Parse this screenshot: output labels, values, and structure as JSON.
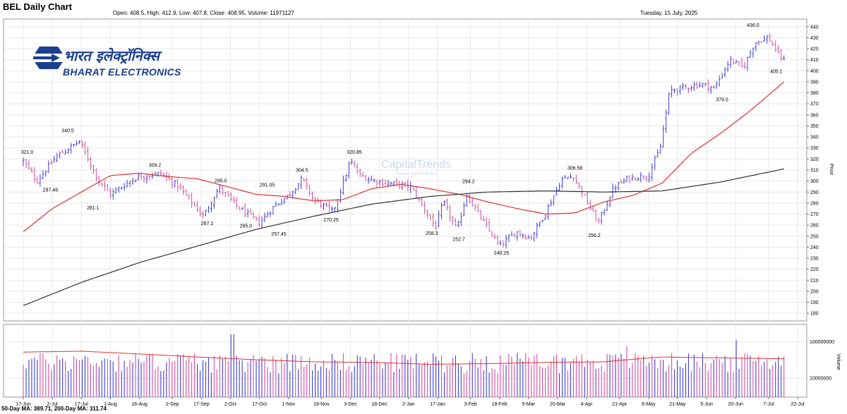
{
  "header": {
    "title": "BEL Daily Chart",
    "ohlc": "Open: 408.5, High: 412.9, Low: 407.8, Close: 408.95, Volume: 11971127",
    "date": "Tuesday, 15 July, 2025"
  },
  "footer": {
    "ma_text": "50-Day MA: 389.71, 200-Day MA: 311.74"
  },
  "logo": {
    "hindi": "भारत इलेक्ट्रॉनिक्स",
    "english": "BHARAT ELECTRONICS"
  },
  "watermark": {
    "brand": "CapitalTrends",
    "tagline": "Gaurav Capital Brand"
  },
  "colors": {
    "up_bar": "#3f3fe0",
    "down_bar": "#d44fa0",
    "ma50": "#e23030",
    "ma200": "#333333",
    "grid": "#e8e8e8",
    "logo": "#1b3f8f"
  },
  "chart_data": [
    {
      "type": "line",
      "panel": "price",
      "ylabel": "Price",
      "ylim": [
        175,
        445
      ],
      "yticks": [
        180,
        190,
        200,
        210,
        220,
        230,
        240,
        250,
        260,
        270,
        280,
        290,
        300,
        310,
        320,
        330,
        340,
        350,
        360,
        370,
        380,
        390,
        400,
        410,
        420,
        430,
        440
      ],
      "x_tick_labels": [
        "17-Jun",
        "2-Jul",
        "17-Jul",
        "1-Aug",
        "16-Aug",
        "2-Sep",
        "17-Sep",
        "2-Oct",
        "17-Oct",
        "1-Nov",
        "18-Nov",
        "3-Dec",
        "18-Dec",
        "2-Jan",
        "17-Jan",
        "3-Feb",
        "18-Feb",
        "5-Mar",
        "20-Mar",
        "4-Apr",
        "21-Apr",
        "6-May",
        "21-May",
        "5-Jun",
        "20-Jun",
        "7-Jul",
        "22-Jul"
      ],
      "x_tick_days": [
        0,
        15,
        30,
        45,
        60,
        77,
        92,
        107,
        122,
        137,
        154,
        169,
        184,
        199,
        214,
        231,
        246,
        261,
        276,
        291,
        308,
        323,
        338,
        353,
        368,
        385,
        400
      ],
      "series": [
        {
          "name": "BEL",
          "kind": "ohlc",
          "anchors_day": [
            0,
            7,
            17,
            29,
            39,
            45,
            58,
            71,
            80,
            93,
            101,
            111,
            122,
            130,
            137,
            144,
            150,
            160,
            169,
            174,
            182,
            200,
            213,
            217,
            224,
            229,
            234,
            246,
            255,
            262,
            270,
            278,
            284,
            297,
            305,
            313,
            323,
            329,
            334,
            350,
            357,
            365,
            372,
            378,
            385,
            390,
            393
          ],
          "anchors_close": [
            318,
            300,
            322,
            336,
            300,
            288,
            303,
            307,
            295,
            268,
            294,
            276,
            262,
            278,
            287,
            302,
            283,
            272,
            318,
            305,
            300,
            295,
            258,
            281,
            255,
            288,
            273,
            241,
            254,
            248,
            272,
            301,
            305,
            262,
            294,
            303,
            305,
            330,
            382,
            388,
            384,
            410,
            403,
            426,
            430,
            415,
            409
          ]
        },
        {
          "name": "50-Day MA",
          "kind": "line",
          "days": [
            0,
            15,
            30,
            45,
            60,
            75,
            90,
            105,
            120,
            135,
            150,
            165,
            180,
            195,
            210,
            225,
            240,
            255,
            270,
            285,
            300,
            315,
            330,
            345,
            360,
            375,
            393
          ],
          "values": [
            254,
            275,
            290,
            305,
            307,
            304,
            302,
            295,
            288,
            286,
            282,
            283,
            293,
            297,
            293,
            288,
            281,
            275,
            270,
            271,
            281,
            287,
            298,
            325,
            343,
            363,
            390
          ]
        },
        {
          "name": "200-Day MA",
          "kind": "line",
          "days": [
            0,
            30,
            60,
            90,
            120,
            150,
            180,
            210,
            240,
            270,
            300,
            330,
            360,
            393
          ],
          "values": [
            187,
            208,
            226,
            241,
            256,
            268,
            279,
            286,
            290,
            291,
            290,
            291,
            299,
            311
          ]
        }
      ],
      "annotations": [
        {
          "day": 2,
          "price": 321.0,
          "text": "321.0",
          "pos": "above"
        },
        {
          "day": 14,
          "price": 297.46,
          "text": "297.46",
          "pos": "below"
        },
        {
          "day": 23,
          "price": 340.5,
          "text": "340.5",
          "pos": "above"
        },
        {
          "day": 36,
          "price": 281.1,
          "text": "281.1",
          "pos": "below"
        },
        {
          "day": 68,
          "price": 309.2,
          "text": "309.2",
          "pos": "above"
        },
        {
          "day": 95,
          "price": 267.1,
          "text": "267.1",
          "pos": "below"
        },
        {
          "day": 102,
          "price": 295.0,
          "text": "295.0",
          "pos": "above"
        },
        {
          "day": 115,
          "price": 265.0,
          "text": "265.0",
          "pos": "below"
        },
        {
          "day": 126,
          "price": 291.05,
          "text": "291.05",
          "pos": "above"
        },
        {
          "day": 132,
          "price": 257.45,
          "text": "257.45",
          "pos": "below"
        },
        {
          "day": 144,
          "price": 304.5,
          "text": "304.5",
          "pos": "above"
        },
        {
          "day": 159,
          "price": 270.25,
          "text": "270.25",
          "pos": "below"
        },
        {
          "day": 171,
          "price": 320.85,
          "text": "320.85",
          "pos": "above"
        },
        {
          "day": 211,
          "price": 258.3,
          "text": "258.3",
          "pos": "below"
        },
        {
          "day": 225,
          "price": 252.7,
          "text": "252.7",
          "pos": "below"
        },
        {
          "day": 230,
          "price": 294.2,
          "text": "294.2",
          "pos": "above"
        },
        {
          "day": 247,
          "price": 240.25,
          "text": "240.25",
          "pos": "below"
        },
        {
          "day": 285,
          "price": 306.58,
          "text": "306.58",
          "pos": "above"
        },
        {
          "day": 295,
          "price": 256.2,
          "text": "256.2",
          "pos": "below"
        },
        {
          "day": 361,
          "price": 379.5,
          "text": "379.5",
          "pos": "below"
        },
        {
          "day": 377,
          "price": 436.0,
          "text": "436.0",
          "pos": "above"
        },
        {
          "day": 389,
          "price": 405.1,
          "text": "405.1",
          "pos": "below"
        }
      ]
    },
    {
      "type": "bar",
      "panel": "volume",
      "ylabel": "Volume",
      "scale": "log",
      "yticks": [
        "100000000",
        "10000000"
      ],
      "ytick_values": [
        100000000,
        10000000
      ],
      "ylim": [
        3000000,
        300000000
      ],
      "typical_volume": 30000000,
      "spikes": [
        {
          "day": 108,
          "value": 160000000
        },
        {
          "day": 368,
          "value": 110000000
        },
        {
          "day": 312,
          "value": 75000000
        }
      ],
      "ma_line": {
        "days": [
          0,
          30,
          60,
          90,
          120,
          150,
          180,
          210,
          240,
          270,
          300,
          330,
          360,
          393
        ],
        "values": [
          52000000,
          55000000,
          46000000,
          38000000,
          32000000,
          28000000,
          27000000,
          24000000,
          25000000,
          27000000,
          28000000,
          38000000,
          36000000,
          34000000
        ]
      }
    }
  ]
}
